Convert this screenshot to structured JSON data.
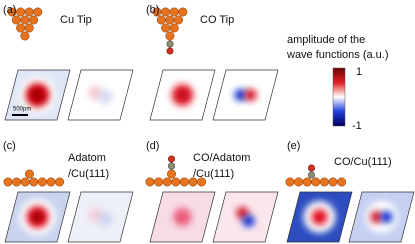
{
  "panels": [
    {
      "label": "(a)",
      "caption": [
        "Cu Tip"
      ]
    },
    {
      "label": "(b)",
      "caption": [
        "CO Tip"
      ]
    },
    {
      "label": "(c)",
      "caption": [
        "Adatom",
        "/Cu(111)"
      ]
    },
    {
      "label": "(d)",
      "caption": [
        "CO/Adatom",
        "/Cu(111)"
      ]
    },
    {
      "label": "(e)",
      "caption": [
        "CO/Cu(111)"
      ]
    }
  ],
  "colorbar": {
    "title": [
      "amplitude of the",
      "wave functions (a.u.)"
    ],
    "max": 1,
    "min": -1
  },
  "scale_bar": "500pm"
}
